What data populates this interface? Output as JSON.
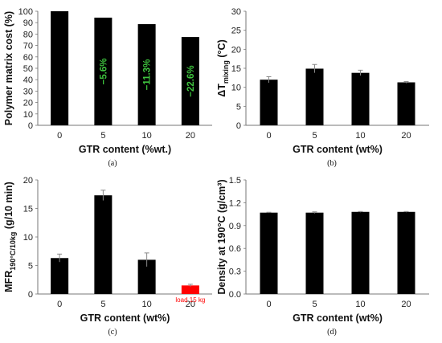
{
  "chart_data": [
    {
      "panel": "(a)",
      "type": "bar",
      "categories": [
        "0",
        "5",
        "10",
        "20"
      ],
      "values": [
        100,
        94.4,
        88.7,
        77.4
      ],
      "xlabel": "GTR content (%wt.)",
      "ylabel": "Polymer matrix cost (%)",
      "ylim": [
        0,
        100
      ],
      "yticks": [
        "0",
        "10",
        "20",
        "30",
        "40",
        "50",
        "60",
        "70",
        "80",
        "90",
        "100"
      ],
      "annotations": [
        "",
        "−5.6%",
        "−11.3%",
        "−22.6%"
      ],
      "annotation_color": "#3ec43e",
      "bar_color": "#000000"
    },
    {
      "panel": "(b)",
      "type": "bar",
      "categories": [
        "0",
        "5",
        "10",
        "20"
      ],
      "values": [
        12.0,
        14.9,
        13.8,
        11.3
      ],
      "errors": [
        0.8,
        1.1,
        0.7,
        0.2
      ],
      "xlabel": "GTR content (wt%)",
      "ylabel_main": "ΔT",
      "ylabel_sub": "mixing",
      "ylabel_unit": " (°C)",
      "ylim": [
        0,
        30
      ],
      "yticks": [
        "0",
        "5",
        "10",
        "15",
        "20",
        "25",
        "30"
      ],
      "bar_color": "#000000"
    },
    {
      "panel": "(c)",
      "type": "bar",
      "categories": [
        "0",
        "5",
        "10",
        "20"
      ],
      "values": [
        6.3,
        17.3,
        6.0,
        1.5
      ],
      "errors": [
        0.7,
        0.9,
        1.2,
        0.2
      ],
      "bar_colors": [
        "#000000",
        "#000000",
        "#000000",
        "#ff0000"
      ],
      "xlabel": "GTR content (wt%)",
      "ylabel_main": "MFR",
      "ylabel_sub": "190°C/10kg",
      "ylabel_unit": " (g/10 min)",
      "ylim": [
        0,
        20
      ],
      "yticks": [
        "0",
        "5",
        "10",
        "15",
        "20"
      ],
      "note": "load 15 kg",
      "note_color": "#ff0000"
    },
    {
      "panel": "(d)",
      "type": "bar",
      "categories": [
        "0",
        "5",
        "10",
        "20"
      ],
      "values": [
        1.07,
        1.07,
        1.08,
        1.08
      ],
      "errors": [
        0.005,
        0.01,
        0.005,
        0.005
      ],
      "xlabel": "GTR content (wt%)",
      "ylabel": "Density at 190°C (g/cm³)",
      "ylim": [
        0,
        1.5
      ],
      "yticks": [
        "0.0",
        "0.3",
        "0.6",
        "0.9",
        "1.2",
        "1.5"
      ],
      "bar_color": "#000000"
    }
  ]
}
